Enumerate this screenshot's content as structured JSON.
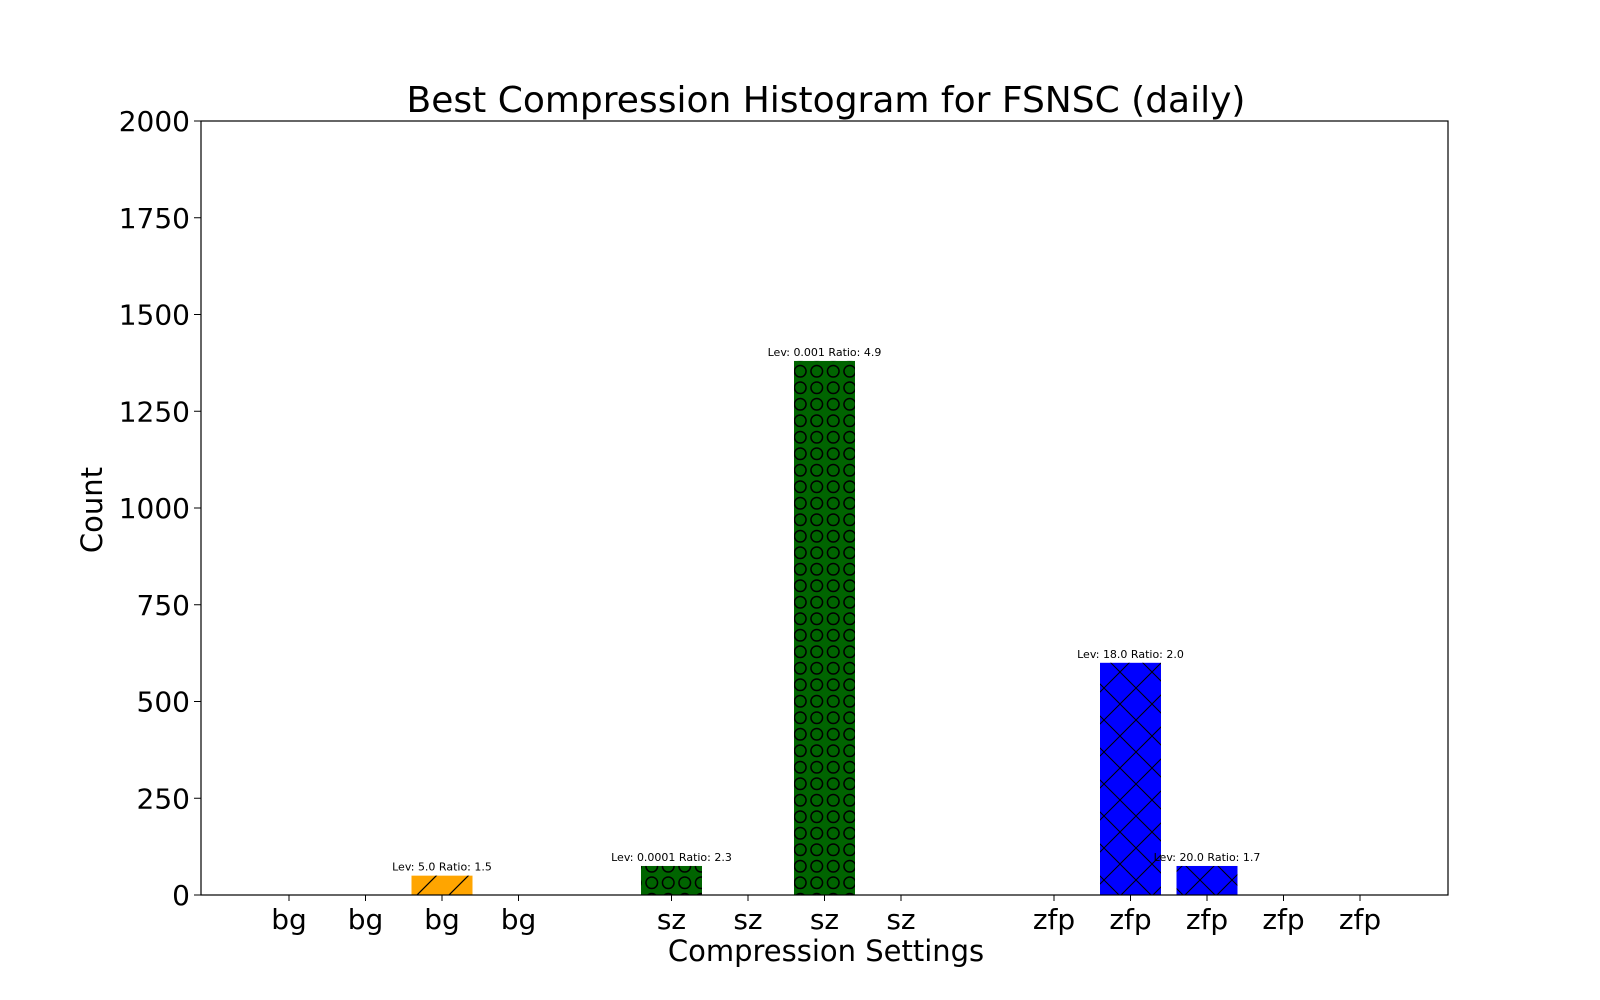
{
  "chart_data": {
    "type": "bar",
    "title": "Best Compression Histogram for FSNSC (daily)",
    "xlabel": "Compression Settings",
    "ylabel": "Count",
    "ylim": [
      0,
      2000
    ],
    "yticks": [
      0,
      250,
      500,
      750,
      1000,
      1250,
      1500,
      1750,
      2000
    ],
    "categories": [
      "bg",
      "bg",
      "bg",
      "bg",
      "sz",
      "sz",
      "sz",
      "sz",
      "zfp",
      "zfp",
      "zfp",
      "zfp",
      "zfp"
    ],
    "groups": [
      0,
      0,
      0,
      0,
      1,
      1,
      1,
      1,
      2,
      2,
      2,
      2,
      2
    ],
    "values": [
      0,
      0,
      50,
      0,
      75,
      0,
      1380,
      0,
      0,
      600,
      75,
      0,
      0
    ],
    "bar_labels": [
      "",
      "",
      "Lev: 5.0 Ratio: 1.5",
      "",
      "Lev: 0.0001 Ratio: 2.3",
      "",
      "Lev: 0.001 Ratio: 4.9",
      "",
      "",
      "Lev: 18.0 Ratio: 2.0",
      "Lev: 20.0 Ratio: 1.7",
      "",
      ""
    ],
    "colors": {
      "bg": "#ffa500",
      "sz": "#006400",
      "zfp": "#0000ff"
    },
    "hatches": {
      "bg": "slash",
      "sz": "circles",
      "zfp": "crosshatch"
    },
    "grid": false
  }
}
